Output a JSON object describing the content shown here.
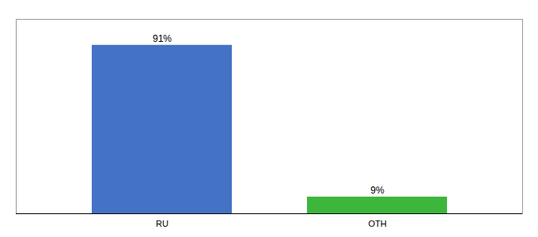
{
  "chart_data": {
    "type": "bar",
    "categories": [
      "RU",
      "OTH"
    ],
    "values": [
      91,
      9
    ],
    "value_labels": [
      "91%",
      "9%"
    ],
    "colors": [
      "#4472c4",
      "#3cb73c"
    ],
    "ylim": [
      0,
      105
    ],
    "data_labels": true,
    "tick_labels": "x",
    "grid": false
  }
}
